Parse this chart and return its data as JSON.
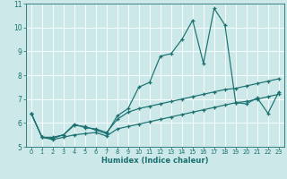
{
  "xlabel": "Humidex (Indice chaleur)",
  "bg_color": "#cce8e8",
  "line_color": "#1a7070",
  "grid_color": "#ffffff",
  "xlim": [
    -0.5,
    23.5
  ],
  "ylim": [
    5,
    11
  ],
  "yticks": [
    5,
    6,
    7,
    8,
    9,
    10,
    11
  ],
  "xticks": [
    0,
    1,
    2,
    3,
    4,
    5,
    6,
    7,
    8,
    9,
    10,
    11,
    12,
    13,
    14,
    15,
    16,
    17,
    18,
    19,
    20,
    21,
    22,
    23
  ],
  "main_series": [
    6.4,
    5.4,
    5.35,
    5.5,
    5.9,
    5.85,
    5.7,
    5.55,
    6.3,
    6.6,
    7.5,
    7.7,
    8.8,
    8.9,
    9.5,
    10.3,
    8.5,
    10.8,
    10.1,
    6.85,
    6.8,
    7.05,
    6.4,
    7.3
  ],
  "trend1": [
    6.4,
    5.4,
    5.4,
    5.5,
    5.95,
    5.8,
    5.75,
    5.6,
    6.15,
    6.45,
    6.6,
    6.7,
    6.8,
    6.9,
    7.0,
    7.1,
    7.2,
    7.3,
    7.4,
    7.45,
    7.55,
    7.65,
    7.75,
    7.85
  ],
  "trend2": [
    6.4,
    5.4,
    5.3,
    5.4,
    5.5,
    5.55,
    5.6,
    5.45,
    5.75,
    5.85,
    5.95,
    6.05,
    6.15,
    6.25,
    6.35,
    6.45,
    6.55,
    6.65,
    6.75,
    6.85,
    6.9,
    7.0,
    7.1,
    7.2
  ]
}
